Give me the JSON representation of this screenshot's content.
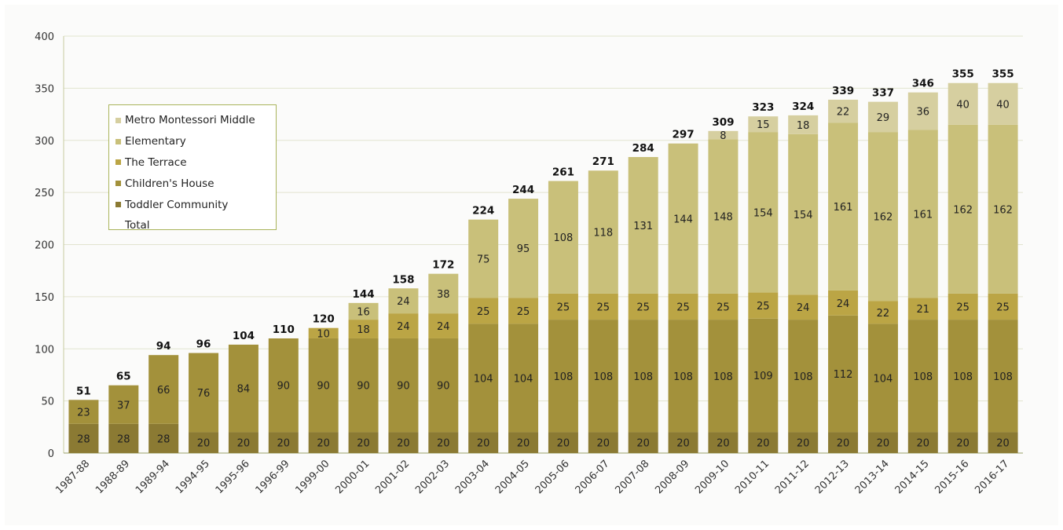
{
  "chart_data": {
    "type": "bar",
    "stacked": true,
    "title": "",
    "xlabel": "",
    "ylabel": "",
    "ylim": [
      0,
      400
    ],
    "yticks": [
      0,
      50,
      100,
      150,
      200,
      250,
      300,
      350,
      400
    ],
    "grid": true,
    "legend_position": "top-left",
    "categories": [
      "1987-88",
      "1988-89",
      "1989-94",
      "1994-95",
      "1995-96",
      "1996-99",
      "1999-00",
      "2000-01",
      "2001-02",
      "2002-03",
      "2003-04",
      "2004-05",
      "2005-06",
      "2006-07",
      "2007-08",
      "2008-09",
      "2009-10",
      "2010-11",
      "2011-12",
      "2012-13",
      "2013-14",
      "2014-15",
      "2015-16",
      "2016-17"
    ],
    "series": [
      {
        "name": "Toddler Community",
        "color": "#8b7a33",
        "values": [
          28,
          28,
          28,
          20,
          20,
          20,
          20,
          20,
          20,
          20,
          20,
          20,
          20,
          20,
          20,
          20,
          20,
          20,
          20,
          20,
          20,
          20,
          20,
          20
        ]
      },
      {
        "name": "Children's House",
        "color": "#a3913b",
        "values": [
          23,
          37,
          66,
          76,
          84,
          90,
          90,
          90,
          90,
          90,
          104,
          104,
          108,
          108,
          108,
          108,
          108,
          109,
          108,
          112,
          104,
          108,
          108,
          108
        ]
      },
      {
        "name": "The Terrace",
        "color": "#bba545",
        "values": [
          null,
          null,
          null,
          null,
          null,
          null,
          10,
          18,
          24,
          24,
          25,
          25,
          25,
          25,
          25,
          25,
          25,
          25,
          24,
          24,
          22,
          21,
          25,
          25
        ]
      },
      {
        "name": "Elementary",
        "color": "#c9c07a",
        "values": [
          null,
          null,
          null,
          null,
          null,
          null,
          null,
          16,
          24,
          38,
          75,
          95,
          108,
          118,
          131,
          144,
          148,
          154,
          154,
          161,
          162,
          161,
          162,
          162
        ]
      },
      {
        "name": "Metro Montessori Middle",
        "color": "#d6cfa0",
        "values": [
          null,
          null,
          null,
          null,
          null,
          null,
          null,
          null,
          null,
          null,
          null,
          null,
          null,
          null,
          null,
          null,
          8,
          15,
          18,
          22,
          29,
          36,
          40,
          40
        ]
      }
    ],
    "totals": [
      51,
      65,
      94,
      96,
      104,
      110,
      120,
      144,
      158,
      172,
      224,
      244,
      261,
      271,
      284,
      297,
      309,
      323,
      324,
      339,
      337,
      346,
      355,
      355
    ],
    "total_label": "Total"
  },
  "legend": {
    "items": [
      {
        "label": "Metro Montessori Middle",
        "color": "#d6cfa0"
      },
      {
        "label": "Elementary",
        "color": "#c9c07a"
      },
      {
        "label": "The Terrace",
        "color": "#bba545"
      },
      {
        "label": "Children's House",
        "color": "#a3913b"
      },
      {
        "label": "Toddler Community",
        "color": "#8b7a33"
      },
      {
        "label": "Total",
        "color": ""
      }
    ]
  }
}
